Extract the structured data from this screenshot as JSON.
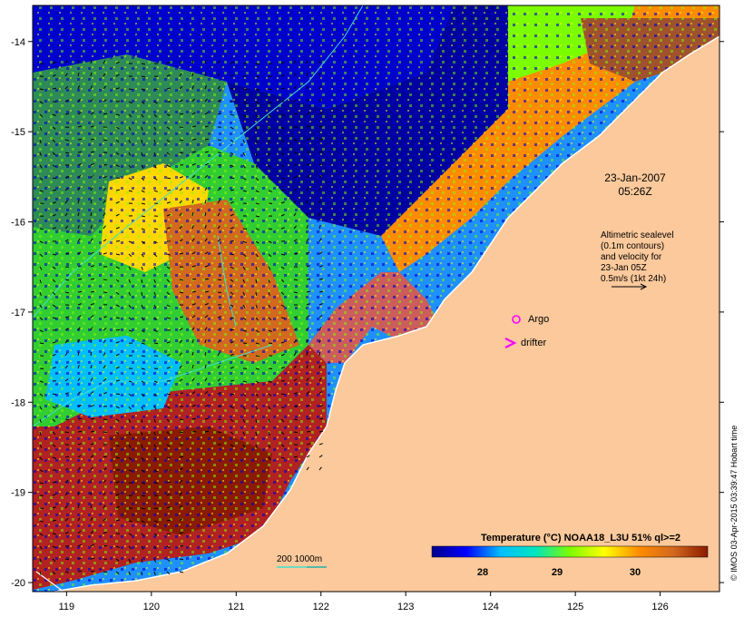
{
  "map": {
    "x_ticks": [
      "119",
      "120",
      "121",
      "122",
      "123",
      "124",
      "125",
      "126"
    ],
    "y_ticks": [
      "-14",
      "-15",
      "-16",
      "-17",
      "-18",
      "-19",
      "-20"
    ],
    "lon_range": [
      118.6,
      126.7
    ],
    "lat_range": [
      -20.1,
      -13.6
    ]
  },
  "annotations": {
    "date_line1": "23-Jan-2007",
    "date_line2": "05:26Z",
    "legend_lines": [
      "Altimetric sealevel",
      "(0.1m contours)",
      "and velocity for",
      "23-Jan 05Z",
      "0.5m/s (1kt 24h)"
    ],
    "argo_label": "Argo",
    "drifter_label": "drifter",
    "depth_label": "200  1000m",
    "credit": "© IMOS 03-Apr-2015 03:39:47 Hobart time"
  },
  "colorbar": {
    "title": "Temperature (°C) NOAA18_L3U 51% ql>=2",
    "ticks": [
      "28",
      "29",
      "30"
    ],
    "colors": [
      "#00008b",
      "#0000ff",
      "#00bfff",
      "#00e5c0",
      "#7cfc00",
      "#ffff00",
      "#ff8c00",
      "#d2691e",
      "#8b1a00"
    ]
  },
  "colors": {
    "land": "#fbc99b",
    "argo": "#ff00ff",
    "contour": "#40e0d0"
  }
}
